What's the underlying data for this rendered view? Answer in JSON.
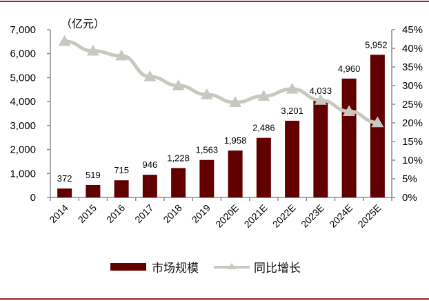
{
  "chart_data": {
    "type": "bar+line",
    "unit_label": "（亿元）",
    "categories": [
      "2014",
      "2015",
      "2016",
      "2017",
      "2018",
      "2019",
      "2020E",
      "2021E",
      "2022E",
      "2023E",
      "2024E",
      "2025E"
    ],
    "series": [
      {
        "name": "市场规模",
        "type": "bar",
        "axis": "left",
        "color": "#620000",
        "values": [
          372,
          519,
          715,
          946,
          1228,
          1563,
          1958,
          2486,
          3201,
          4033,
          4960,
          5952
        ],
        "labels": [
          "372",
          "519",
          "715",
          "946",
          "1,228",
          "1,563",
          "1,958",
          "2,486",
          "3,201",
          "4,033",
          "4,960",
          "5,952"
        ]
      },
      {
        "name": "同比增长",
        "type": "line",
        "axis": "right",
        "color": "#c9c8bf",
        "marker": "triangle",
        "values": [
          41.9,
          39.3,
          38.0,
          32.4,
          30.0,
          27.6,
          25.5,
          27.2,
          29.1,
          26.1,
          23.1,
          20.1
        ]
      }
    ],
    "left_axis": {
      "ylim": [
        0,
        7000
      ],
      "ticks": [
        0,
        1000,
        2000,
        3000,
        4000,
        5000,
        6000,
        7000
      ],
      "tick_labels": [
        "0",
        "1,000",
        "2,000",
        "3,000",
        "4,000",
        "5,000",
        "6,000",
        "7,000"
      ]
    },
    "right_axis": {
      "ylim": [
        0,
        45
      ],
      "ticks": [
        0,
        5,
        10,
        15,
        20,
        25,
        30,
        35,
        40,
        45
      ],
      "tick_labels": [
        "0%",
        "5%",
        "10%",
        "15%",
        "20%",
        "25%",
        "30%",
        "35%",
        "40%",
        "45%"
      ]
    },
    "grid": false,
    "legend_position": "bottom",
    "title": "",
    "xlabel": "",
    "ylabel": "亿元"
  },
  "legend": {
    "bar_label": "市场规模",
    "line_label": "同比增长"
  }
}
